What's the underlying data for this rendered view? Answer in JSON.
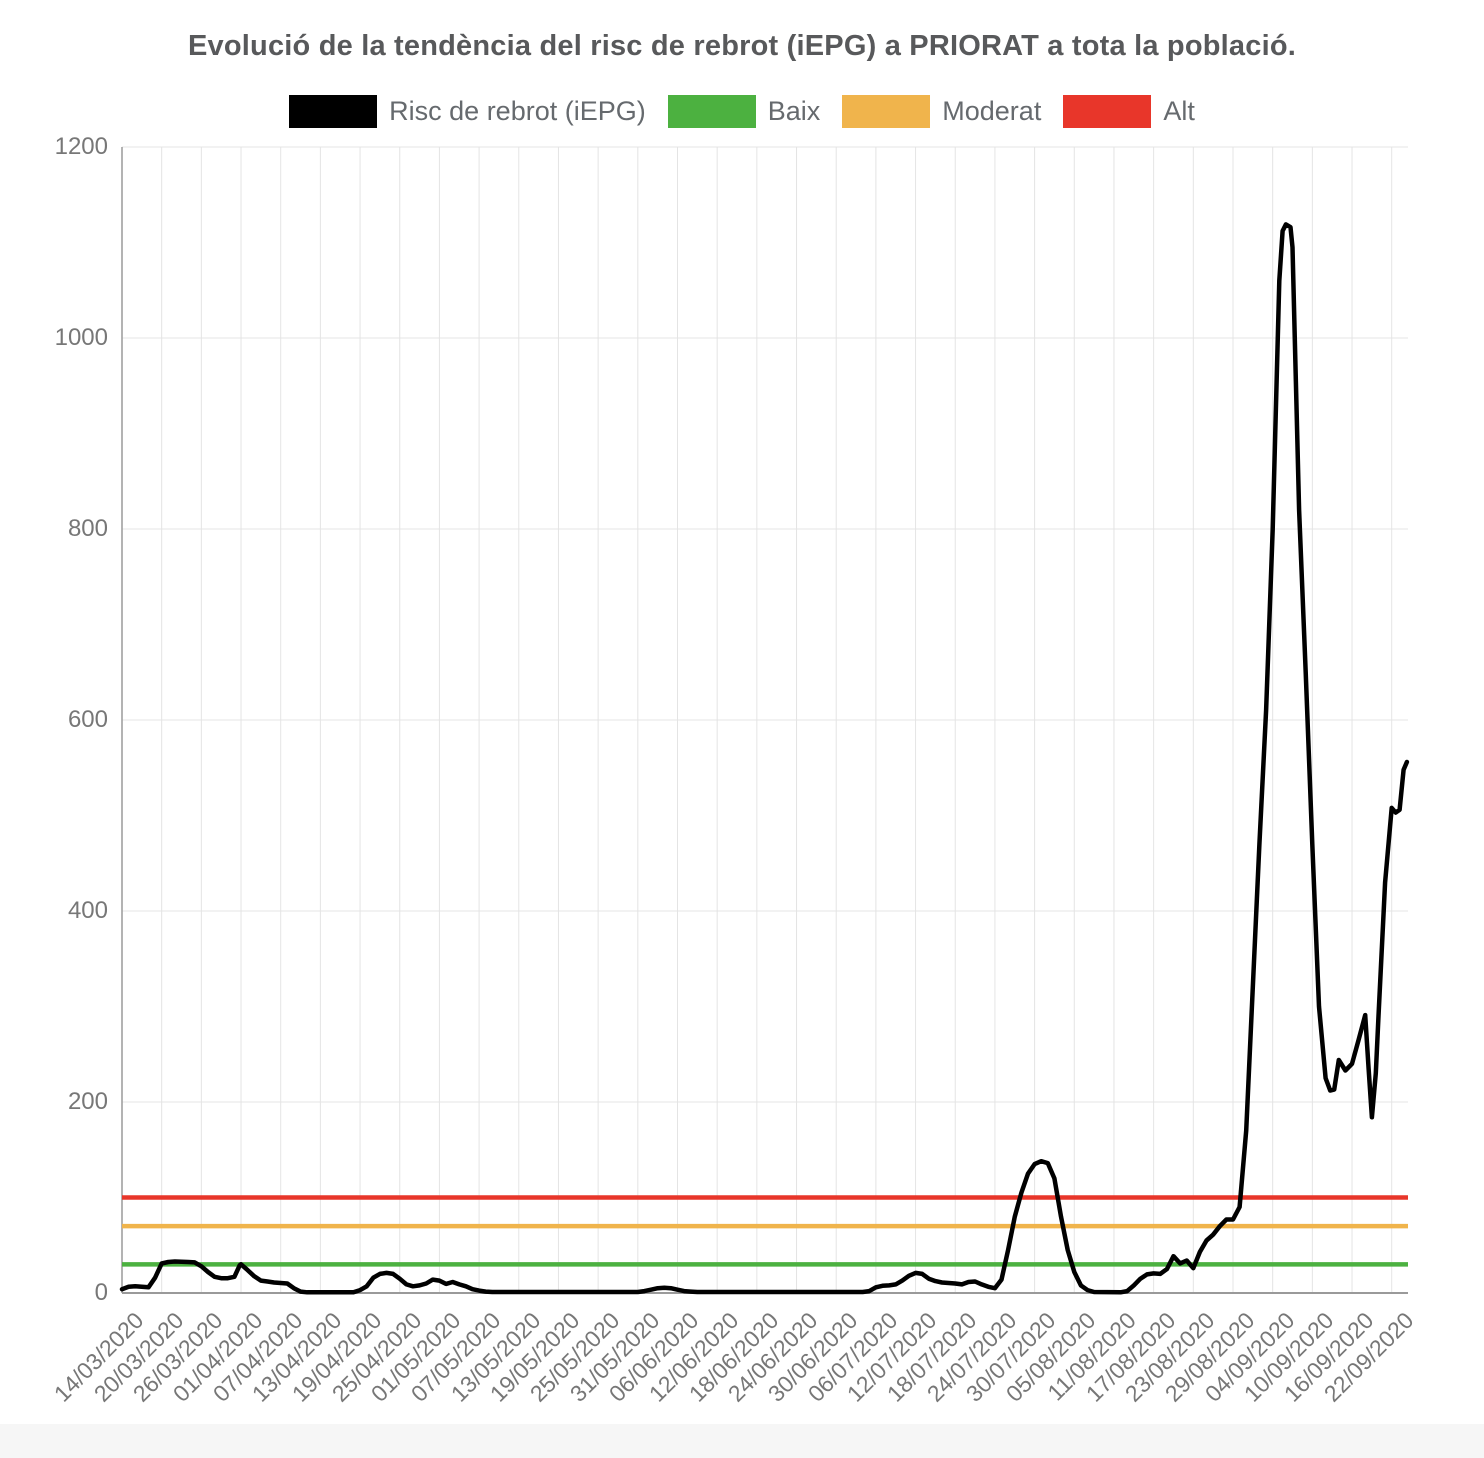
{
  "title": "Evolució de la tendència del risc de rebrot (iEPG) a PRIORAT a tota la població.",
  "chart_data": {
    "type": "line",
    "title": "Evolució de la tendència del risc de rebrot (iEPG) a PRIORAT a tota la població.",
    "grid": true,
    "legend_position": "top",
    "x_axis": {
      "days_per_tick": 6,
      "tick_labels": [
        "14/03/2020",
        "20/03/2020",
        "26/03/2020",
        "01/04/2020",
        "07/04/2020",
        "13/04/2020",
        "19/04/2020",
        "25/04/2020",
        "01/05/2020",
        "07/05/2020",
        "13/05/2020",
        "19/05/2020",
        "25/05/2020",
        "31/05/2020",
        "06/06/2020",
        "12/06/2020",
        "18/06/2020",
        "24/06/2020",
        "30/06/2020",
        "06/07/2020",
        "12/07/2020",
        "18/07/2020",
        "24/07/2020",
        "30/07/2020",
        "05/08/2020",
        "11/08/2020",
        "17/08/2020",
        "23/08/2020",
        "29/08/2020",
        "04/09/2020",
        "10/09/2020",
        "16/09/2020",
        "22/09/2020"
      ]
    },
    "y_axis": {
      "ticks": [
        0,
        200,
        400,
        600,
        800,
        1000,
        1200
      ],
      "range": [
        0,
        1200
      ]
    },
    "series": [
      {
        "name": "Risc de rebrot (iEPG)",
        "kind": "line",
        "color": "#000000",
        "points_day_value": [
          [
            0,
            4
          ],
          [
            1,
            6.5
          ],
          [
            2,
            7
          ],
          [
            3,
            6.5
          ],
          [
            4,
            6
          ],
          [
            5,
            16
          ],
          [
            6,
            31
          ],
          [
            7,
            32.5
          ],
          [
            8,
            33
          ],
          [
            10,
            32.5
          ],
          [
            11,
            32
          ],
          [
            12,
            28
          ],
          [
            13,
            22
          ],
          [
            14,
            17
          ],
          [
            15,
            15.5
          ],
          [
            16,
            15.5
          ],
          [
            17,
            17
          ],
          [
            17.8,
            29
          ],
          [
            18,
            30
          ],
          [
            19,
            24
          ],
          [
            20,
            17.5
          ],
          [
            21,
            13
          ],
          [
            22,
            12
          ],
          [
            23,
            11
          ],
          [
            25,
            10
          ],
          [
            26,
            5
          ],
          [
            27,
            1.5
          ],
          [
            28,
            0.7
          ],
          [
            35,
            0.7
          ],
          [
            36,
            3
          ],
          [
            37,
            7
          ],
          [
            38,
            16
          ],
          [
            39,
            20
          ],
          [
            40,
            21
          ],
          [
            41,
            20
          ],
          [
            42,
            15
          ],
          [
            43,
            9
          ],
          [
            44,
            7
          ],
          [
            45,
            8
          ],
          [
            46,
            10
          ],
          [
            47,
            14
          ],
          [
            48,
            13
          ],
          [
            49,
            9.5
          ],
          [
            50,
            11.5
          ],
          [
            51,
            9
          ],
          [
            52,
            7
          ],
          [
            53,
            4
          ],
          [
            54,
            2.5
          ],
          [
            55,
            1.5
          ],
          [
            56,
            1
          ],
          [
            78,
            1
          ],
          [
            79,
            2
          ],
          [
            80,
            3.5
          ],
          [
            81,
            5
          ],
          [
            82,
            5.5
          ],
          [
            83,
            5
          ],
          [
            84,
            3.5
          ],
          [
            85,
            2
          ],
          [
            86,
            1.5
          ],
          [
            87,
            1
          ],
          [
            112,
            1
          ],
          [
            113,
            2
          ],
          [
            114,
            6
          ],
          [
            115,
            7.5
          ],
          [
            116,
            8
          ],
          [
            117,
            9
          ],
          [
            118,
            13
          ],
          [
            119,
            18
          ],
          [
            120,
            21
          ],
          [
            121,
            20
          ],
          [
            122,
            15
          ],
          [
            123,
            12.5
          ],
          [
            124,
            11
          ],
          [
            125,
            10.5
          ],
          [
            126,
            10
          ],
          [
            127,
            9
          ],
          [
            128,
            11.5
          ],
          [
            129,
            12
          ],
          [
            130,
            9
          ],
          [
            131,
            6.5
          ],
          [
            132,
            5
          ],
          [
            133,
            14
          ],
          [
            134,
            45
          ],
          [
            135,
            80
          ],
          [
            136,
            105
          ],
          [
            137,
            125
          ],
          [
            138,
            135
          ],
          [
            139,
            138
          ],
          [
            140,
            136
          ],
          [
            141,
            120
          ],
          [
            142,
            80
          ],
          [
            143,
            45
          ],
          [
            144,
            22
          ],
          [
            145,
            8
          ],
          [
            146,
            3
          ],
          [
            147,
            1
          ],
          [
            151,
            0.7
          ],
          [
            152,
            2
          ],
          [
            153,
            8
          ],
          [
            154,
            15
          ],
          [
            155,
            19.5
          ],
          [
            156,
            20.5
          ],
          [
            157,
            20
          ],
          [
            158,
            25
          ],
          [
            159,
            38.5
          ],
          [
            160,
            31
          ],
          [
            161,
            34
          ],
          [
            162,
            26
          ],
          [
            163,
            43
          ],
          [
            164,
            55
          ],
          [
            165,
            61
          ],
          [
            166,
            70
          ],
          [
            167,
            77
          ],
          [
            168,
            77
          ],
          [
            169,
            90
          ],
          [
            170,
            170
          ],
          [
            171,
            320
          ],
          [
            172,
            470
          ],
          [
            173,
            610
          ],
          [
            174,
            800
          ],
          [
            175,
            1060
          ],
          [
            175.5,
            1112
          ],
          [
            176,
            1119
          ],
          [
            176.7,
            1116
          ],
          [
            177,
            1095
          ],
          [
            178,
            820
          ],
          [
            179,
            650
          ],
          [
            180,
            470
          ],
          [
            181,
            300
          ],
          [
            182,
            225
          ],
          [
            182.7,
            212
          ],
          [
            183.3,
            213
          ],
          [
            184,
            244
          ],
          [
            185,
            233
          ],
          [
            186,
            240
          ],
          [
            187,
            265
          ],
          [
            188,
            291
          ],
          [
            188.5,
            235
          ],
          [
            189,
            184
          ],
          [
            189.6,
            230
          ],
          [
            190,
            290
          ],
          [
            191,
            430
          ],
          [
            192,
            508
          ],
          [
            192.6,
            503
          ],
          [
            193.2,
            506
          ],
          [
            193.8,
            548
          ],
          [
            194.3,
            556
          ]
        ]
      },
      {
        "name": "Baix",
        "kind": "threshold",
        "color": "#4cb140",
        "value": 30
      },
      {
        "name": "Moderat",
        "kind": "threshold",
        "color": "#f0b44c",
        "value": 70
      },
      {
        "name": "Alt",
        "kind": "threshold",
        "color": "#e8362a",
        "value": 100
      }
    ]
  },
  "colors": {
    "grid": "#e4e4e4",
    "axis": "#9a9a9a",
    "tick_text": "#777777",
    "title_text": "#58595b"
  }
}
